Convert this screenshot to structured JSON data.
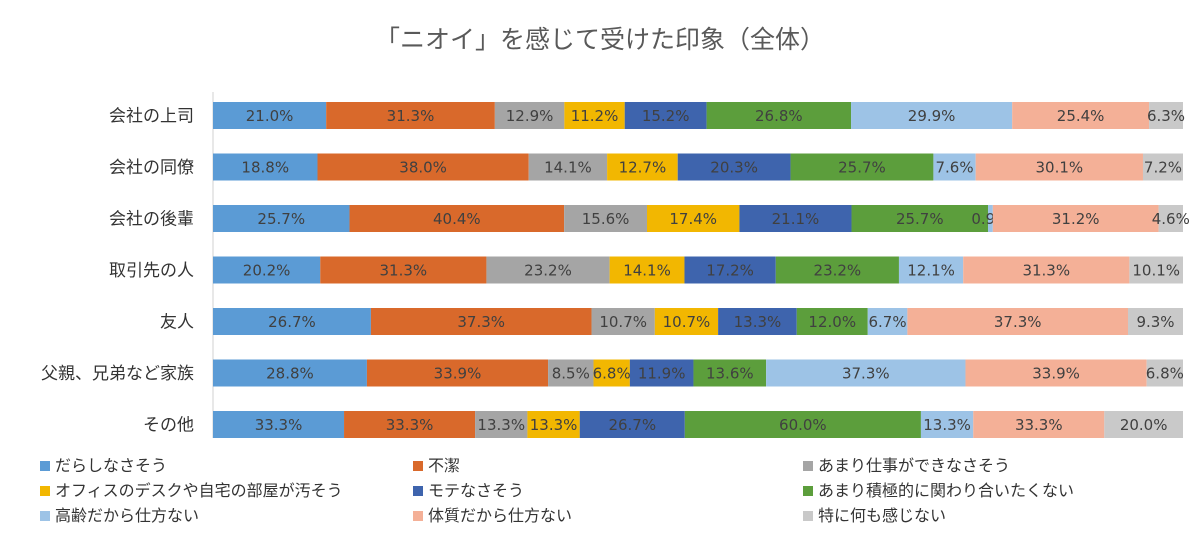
{
  "chart_data": {
    "type": "bar",
    "orientation": "horizontal",
    "stacked": true,
    "title": "「ニオイ」を感じて受けた印象（全体）",
    "xlabel": "",
    "ylabel": "",
    "legend_position": "bottom",
    "grid": false,
    "categories": [
      "会社の上司",
      "会社の同僚",
      "会社の後輩",
      "取引先の人",
      "友人",
      "父親、兄弟など家族",
      "その他"
    ],
    "value_suffix": "%",
    "series": [
      {
        "name": "だらしなさそう",
        "color": "#5b9bd5",
        "values": [
          21.0,
          18.8,
          25.7,
          20.2,
          26.7,
          28.8,
          33.3
        ]
      },
      {
        "name": "不潔",
        "color": "#d9692b",
        "values": [
          31.3,
          38.0,
          40.4,
          31.3,
          37.3,
          33.9,
          33.3
        ]
      },
      {
        "name": "あまり仕事ができなさそう",
        "color": "#a5a5a5",
        "values": [
          12.9,
          14.1,
          15.6,
          23.2,
          10.7,
          8.5,
          13.3
        ]
      },
      {
        "name": "オフィスのデスクや自宅の部屋が汚そう",
        "color": "#f2b701",
        "values": [
          11.2,
          12.7,
          17.4,
          14.1,
          10.7,
          6.8,
          13.3
        ]
      },
      {
        "name": "モテなさそう",
        "color": "#3e64ad",
        "values": [
          15.2,
          20.3,
          21.1,
          17.2,
          13.3,
          11.9,
          26.7
        ]
      },
      {
        "name": "あまり積極的に関わり合いたくない",
        "color": "#5c9e3c",
        "values": [
          26.8,
          25.7,
          25.7,
          23.2,
          12.0,
          13.6,
          60.0
        ]
      },
      {
        "name": "高齢だから仕方ない",
        "color": "#9dc3e6",
        "values": [
          29.9,
          7.6,
          0.9,
          12.1,
          6.7,
          37.3,
          13.3
        ]
      },
      {
        "name": "体質だから仕方ない",
        "color": "#f4b097",
        "values": [
          25.4,
          30.1,
          31.2,
          31.3,
          37.3,
          33.9,
          33.3
        ]
      },
      {
        "name": "特に何も感じない",
        "color": "#c9c9c9",
        "values": [
          6.3,
          7.2,
          4.6,
          10.1,
          9.3,
          6.8,
          20.0
        ]
      }
    ]
  }
}
